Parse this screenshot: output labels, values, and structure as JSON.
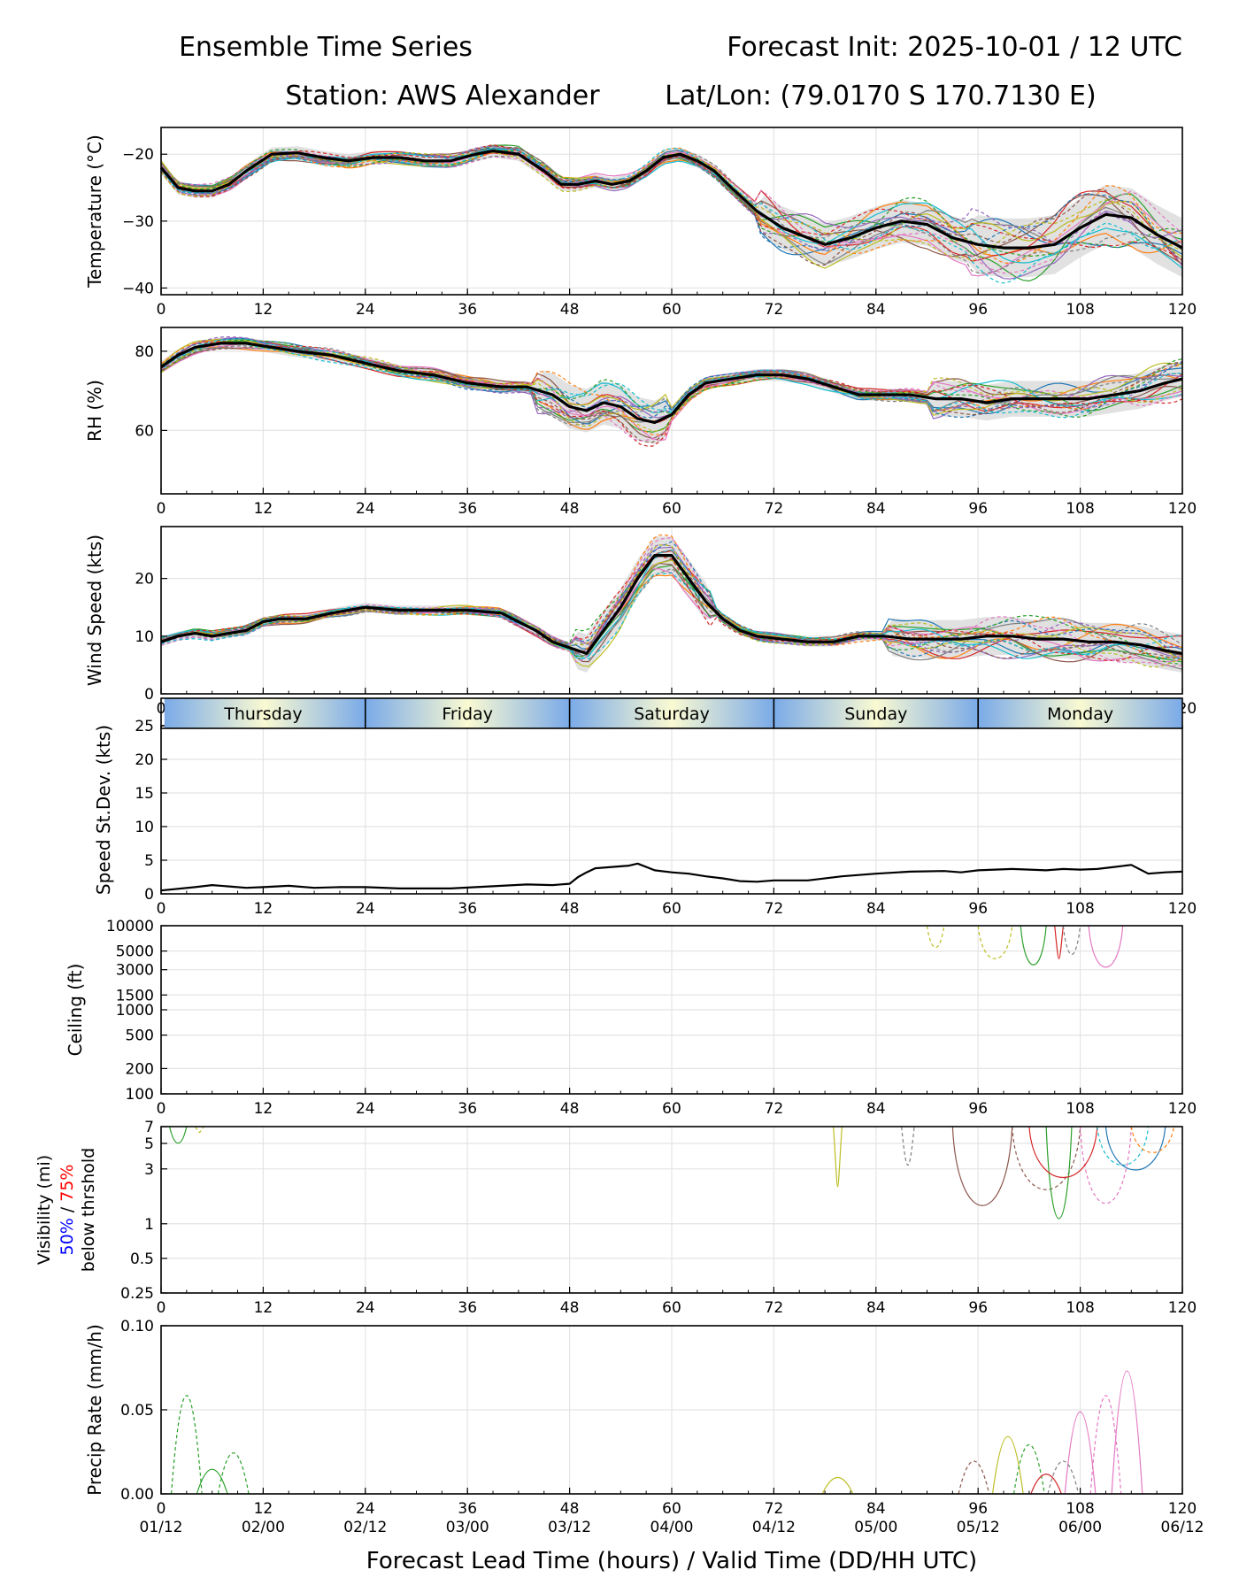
{
  "header": {
    "title_left": "Ensemble Time Series",
    "title_right": "Forecast Init: 2025-10-01 / 12 UTC",
    "station": "Station: AWS Alexander",
    "latlon": "Lat/Lon: (79.0170 S 170.7130 E)"
  },
  "xaxis": {
    "label": "Forecast Lead Time (hours) / Valid Time (DD/HH UTC)",
    "ticks": [
      0,
      12,
      24,
      36,
      48,
      60,
      72,
      84,
      96,
      108,
      120
    ],
    "valid_times": [
      "01/12",
      "02/00",
      "02/12",
      "03/00",
      "03/12",
      "04/00",
      "04/12",
      "05/00",
      "05/12",
      "06/00",
      "06/12"
    ]
  },
  "days": [
    "Thursday",
    "Friday",
    "Saturday",
    "Sunday",
    "Monday"
  ],
  "colors": {
    "mean": "#000000",
    "spread": "#d9d9d9",
    "grid": "#e4e4e4",
    "day_edge": "#7aaae8",
    "day_mid": "#fafad2",
    "members": [
      "#1f77b4",
      "#ff7f0e",
      "#2ca02c",
      "#d62728",
      "#9467bd",
      "#8c564b",
      "#e377c2",
      "#7f7f7f",
      "#bcbd22",
      "#17becf"
    ]
  },
  "chart_data": [
    {
      "id": "temp",
      "type": "line",
      "ylabel": "Temperature (°C)",
      "ylim": [
        -41,
        -16
      ],
      "yticks": [
        -40,
        -30,
        -20
      ],
      "mean_series": {
        "name": "Ensemble mean",
        "x": [
          0,
          2,
          4,
          6,
          8,
          10,
          13,
          16,
          19,
          22,
          25,
          28,
          31,
          34,
          37,
          39,
          42,
          45,
          47,
          49,
          51,
          53,
          55,
          57,
          59,
          61,
          63,
          65,
          67,
          70,
          73,
          76,
          78,
          81,
          84,
          87,
          90,
          93,
          96,
          99,
          102,
          105,
          108,
          111,
          114,
          117,
          120
        ],
        "values": [
          -22,
          -25,
          -25.5,
          -25.5,
          -24.5,
          -22.5,
          -20,
          -19.8,
          -20.5,
          -21,
          -20.5,
          -20.5,
          -21,
          -21,
          -20,
          -19.5,
          -20,
          -22.5,
          -24.5,
          -24.5,
          -24,
          -24.5,
          -24,
          -22.5,
          -20.5,
          -20,
          -21,
          -22.5,
          -25,
          -28.5,
          -31,
          -32.5,
          -33.5,
          -32.5,
          -31,
          -30,
          -30.5,
          -32.5,
          -33.5,
          -34,
          -34,
          -33.5,
          -31,
          -29,
          -29.5,
          -32,
          -34
        ]
      }
    },
    {
      "id": "rh",
      "type": "line",
      "ylabel": "RH (%)",
      "ylim": [
        44,
        86
      ],
      "yticks": [
        60,
        80
      ],
      "mean_series": {
        "name": "Ensemble mean",
        "x": [
          0,
          2,
          4,
          7,
          10,
          13,
          16,
          20,
          24,
          28,
          32,
          36,
          40,
          43,
          46,
          48,
          50,
          52,
          54,
          56,
          58,
          60,
          62,
          64,
          67,
          70,
          73,
          76,
          79,
          82,
          85,
          88,
          91,
          94,
          97,
          100,
          103,
          106,
          109,
          112,
          115,
          118,
          120
        ],
        "values": [
          76,
          79,
          81,
          82,
          82,
          81,
          80,
          79,
          77,
          75,
          74,
          72,
          71,
          71,
          69,
          66,
          65,
          67,
          66,
          63,
          62,
          64,
          69,
          72,
          73,
          74,
          74,
          73,
          71,
          69,
          69,
          69,
          68,
          68,
          67,
          68,
          68,
          68,
          68,
          69,
          70,
          72,
          73
        ]
      }
    },
    {
      "id": "wind",
      "type": "line",
      "ylabel": "Wind Speed (kts)",
      "ylim": [
        0,
        29
      ],
      "yticks": [
        0,
        10,
        20
      ],
      "mean_series": {
        "name": "Ensemble mean",
        "x": [
          0,
          2,
          4,
          6,
          8,
          10,
          12,
          14,
          17,
          20,
          24,
          28,
          32,
          36,
          40,
          44,
          46,
          48,
          50,
          52,
          54,
          56,
          58,
          60,
          62,
          64,
          66,
          68,
          70,
          73,
          76,
          79,
          82,
          85,
          88,
          91,
          94,
          97,
          100,
          103,
          106,
          109,
          112,
          115,
          118,
          120
        ],
        "values": [
          9,
          10,
          10.5,
          10,
          10.5,
          11,
          12.5,
          13,
          13,
          14,
          15,
          14.5,
          14.5,
          14.5,
          14,
          11,
          9,
          8,
          7,
          11,
          15,
          20,
          24,
          24,
          20,
          16,
          13,
          11,
          10,
          9.5,
          9,
          9,
          10,
          10,
          9.5,
          9.5,
          9.5,
          10,
          10,
          9.5,
          9.5,
          9,
          9,
          8.5,
          7.5,
          7
        ]
      }
    },
    {
      "id": "sd",
      "type": "line",
      "ylabel": "Speed St.Dev. (kts)",
      "ylim": [
        0,
        25
      ],
      "yticks": [
        0,
        5,
        10,
        15,
        20,
        25
      ],
      "mean_series": {
        "name": "Wind speed std dev",
        "x": [
          0,
          4,
          6,
          8,
          10,
          12,
          15,
          18,
          21,
          24,
          28,
          31,
          34,
          37,
          40,
          43,
          46,
          48,
          49,
          50,
          51,
          53,
          55,
          56,
          58,
          60,
          62,
          64,
          66,
          68,
          70,
          72,
          76,
          80,
          84,
          88,
          92,
          94,
          96,
          98,
          100,
          102,
          104,
          106,
          108,
          110,
          112,
          114,
          116,
          118,
          120
        ],
        "values": [
          0.5,
          1,
          1.3,
          1.1,
          0.9,
          1,
          1.2,
          0.9,
          1,
          1,
          0.8,
          0.8,
          0.8,
          1,
          1.2,
          1.4,
          1.3,
          1.5,
          2.5,
          3.2,
          3.8,
          4,
          4.2,
          4.5,
          3.5,
          3.2,
          3,
          2.6,
          2.3,
          1.9,
          1.8,
          2,
          2,
          2.6,
          3,
          3.3,
          3.4,
          3.2,
          3.5,
          3.6,
          3.7,
          3.6,
          3.5,
          3.7,
          3.6,
          3.7,
          4,
          4.3,
          3,
          3.2,
          3.3
        ]
      }
    },
    {
      "id": "ceiling",
      "type": "line",
      "ylabel": "Ceiling (ft)",
      "yscale": "log",
      "ylim": [
        100,
        10000
      ],
      "yticks": [
        100,
        200,
        500,
        1000,
        1500,
        3000,
        5000,
        10000
      ],
      "ytick_labels": [
        "100",
        "200",
        "500",
        "1000",
        "1500",
        "3000",
        "5000",
        "10000"
      ]
    },
    {
      "id": "vis",
      "type": "line",
      "ylabel": "Visibility (mi)",
      "ylabel_50": "50%",
      "ylabel_sep": " / ",
      "ylabel_75": "75%",
      "ylabel_sub": "below thrshold",
      "yscale": "log",
      "ylim": [
        0.25,
        7
      ],
      "yticks": [
        0.25,
        0.5,
        1,
        3,
        5,
        7
      ],
      "ytick_labels": [
        "0.25",
        "0.5",
        "1",
        "3",
        "5",
        "7"
      ]
    },
    {
      "id": "precip",
      "type": "line",
      "ylabel": "Precip Rate (mm/h)",
      "ylim": [
        0,
        0.1
      ],
      "yticks": [
        0,
        0.05,
        0.1
      ],
      "ytick_labels": [
        "0.00",
        "0.05",
        "0.10"
      ]
    }
  ]
}
